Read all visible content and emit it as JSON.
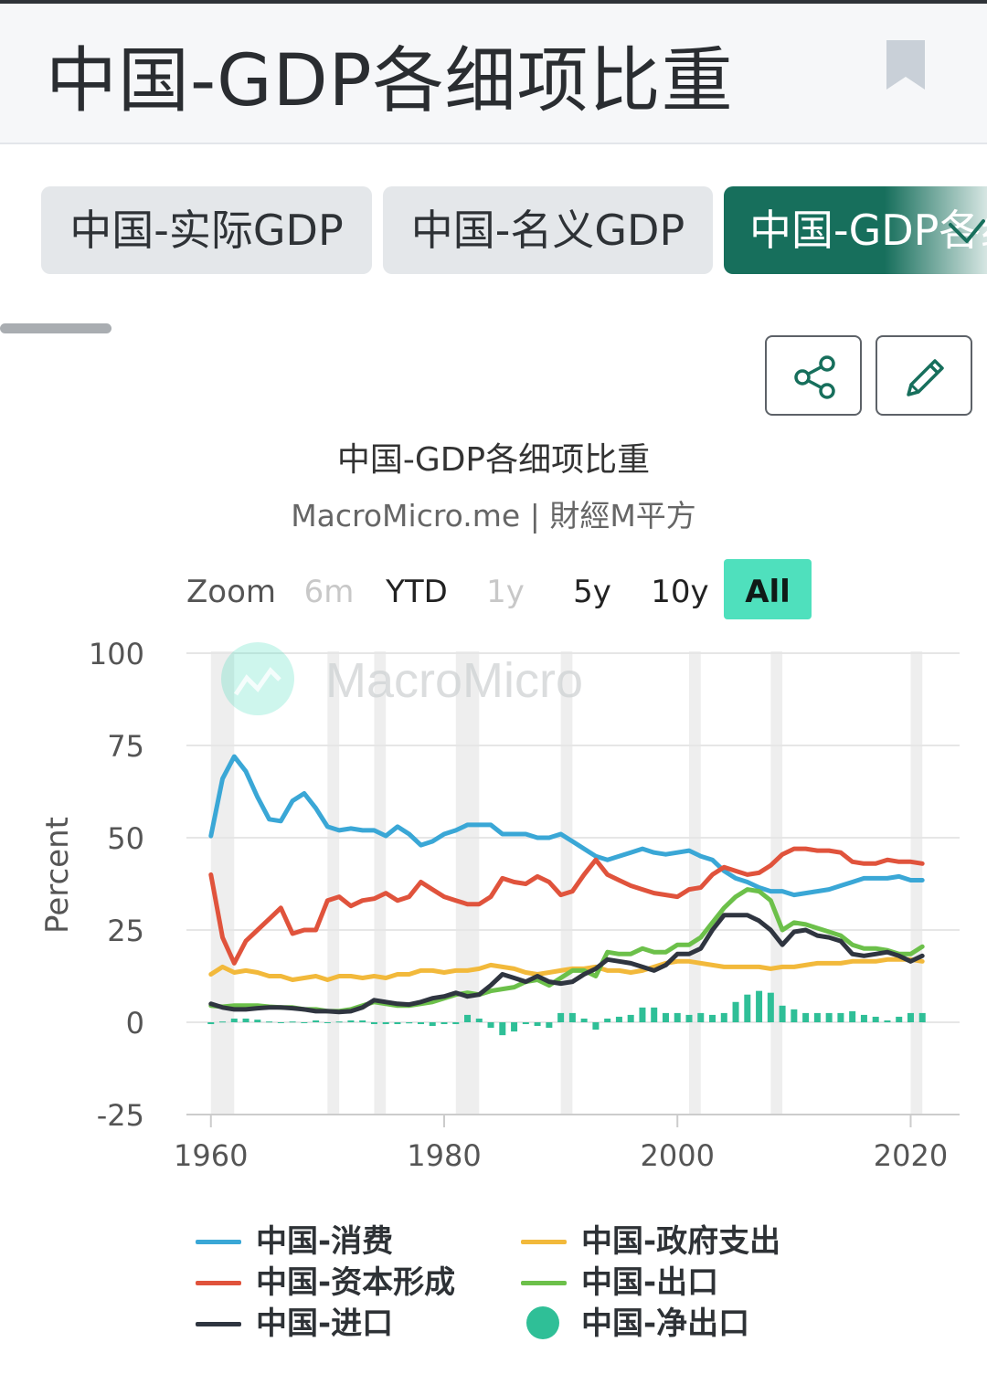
{
  "header": {
    "title": "中国-GDP各细项比重",
    "bookmark_icon": "bookmark-icon"
  },
  "tabs": [
    {
      "label": "中国-实际GDP"
    },
    {
      "label": "中国-名义GDP"
    },
    {
      "label": "中国-GDP各细项比重",
      "active": true
    }
  ],
  "toolbar": {
    "share_icon": "share-icon",
    "edit_icon": "pencil-icon"
  },
  "watermark": "MacroMicro",
  "zoom": {
    "label": "Zoom",
    "options": [
      {
        "label": "6m",
        "state": "disabled"
      },
      {
        "label": "YTD",
        "state": "enabled"
      },
      {
        "label": "1y",
        "state": "disabled"
      },
      {
        "label": "5y",
        "state": "enabled"
      },
      {
        "label": "10y",
        "state": "enabled"
      },
      {
        "label": "All",
        "state": "selected"
      }
    ]
  },
  "colors": {
    "consumption": "#3aa7d6",
    "capital": "#e0533c",
    "imports": "#2f3540",
    "government": "#f2b93b",
    "exports": "#6cc04a",
    "net_exports": "#2fbf97",
    "active_tab": "#176f5c"
  },
  "chart_data": {
    "type": "line",
    "title": "中国-GDP各细项比重",
    "subtitle": "MacroMicro.me | 財經M平方",
    "ylabel": "Percent",
    "xlabel": "",
    "ylim": [
      -25,
      100
    ],
    "xlim": [
      1959,
      2022
    ],
    "yticks": [
      "100",
      "75",
      "50",
      "25",
      "0",
      "-25"
    ],
    "xticks": [
      "1960",
      "1980",
      "2000",
      "2020"
    ],
    "recessions": [
      [
        1960,
        1962
      ],
      [
        1970,
        1971
      ],
      [
        1974,
        1975
      ],
      [
        1981,
        1983
      ],
      [
        1990,
        1991
      ],
      [
        2001,
        2002
      ],
      [
        2008,
        2009
      ],
      [
        2020,
        2021
      ]
    ],
    "x": [
      1960,
      1961,
      1962,
      1963,
      1964,
      1965,
      1966,
      1967,
      1968,
      1969,
      1970,
      1971,
      1972,
      1973,
      1974,
      1975,
      1976,
      1977,
      1978,
      1979,
      1980,
      1981,
      1982,
      1983,
      1984,
      1985,
      1986,
      1987,
      1988,
      1989,
      1990,
      1991,
      1992,
      1993,
      1994,
      1995,
      1996,
      1997,
      1998,
      1999,
      2000,
      2001,
      2002,
      2003,
      2004,
      2005,
      2006,
      2007,
      2008,
      2009,
      2010,
      2011,
      2012,
      2013,
      2014,
      2015,
      2016,
      2017,
      2018,
      2019,
      2020,
      2021
    ],
    "series": [
      {
        "name": "中国-消费",
        "kind": "line",
        "color": "#3aa7d6",
        "values": [
          50.5,
          66,
          72,
          68,
          61,
          55,
          54.5,
          60,
          62,
          58,
          53,
          52,
          52.5,
          52,
          52,
          50.5,
          53,
          51,
          48,
          49,
          51,
          52,
          53.5,
          53.5,
          53.5,
          51,
          51,
          51,
          50,
          50,
          51,
          49,
          47,
          45,
          44,
          45,
          46,
          47,
          46,
          45.5,
          46,
          46.5,
          45,
          44,
          41,
          39,
          38,
          36.5,
          35.5,
          35.5,
          34.5,
          35,
          35.5,
          36,
          37,
          38,
          39,
          39,
          39,
          39.5,
          38.5,
          38.5
        ]
      },
      {
        "name": "中国-资本形成",
        "kind": "line",
        "color": "#e0533c",
        "values": [
          40,
          23,
          16,
          22,
          25,
          28,
          31,
          24,
          25,
          25,
          33,
          34,
          31.5,
          33,
          33.5,
          35,
          33,
          34,
          38,
          36,
          34,
          33,
          32,
          32,
          34,
          39,
          38,
          37.5,
          39.5,
          38,
          34.5,
          35.5,
          40,
          44,
          40,
          38.5,
          37,
          36,
          35,
          34.5,
          34,
          36,
          36.5,
          40,
          42,
          41,
          40,
          40.5,
          42.5,
          45.5,
          47,
          47,
          46.5,
          46.5,
          46,
          43.5,
          43,
          43,
          44,
          43.5,
          43.5,
          43
        ]
      },
      {
        "name": "中国-政府支出",
        "kind": "line",
        "color": "#f2b93b",
        "values": [
          13,
          15,
          13.5,
          14,
          13.5,
          12.5,
          12.5,
          11.5,
          12,
          12.5,
          11.5,
          12.5,
          12.5,
          12,
          12.5,
          12,
          13,
          13,
          14,
          14,
          13.5,
          14,
          14,
          14.5,
          15.5,
          15,
          14.5,
          13.5,
          13,
          13.5,
          14,
          14.5,
          14.5,
          15,
          14,
          14,
          13.5,
          14,
          15,
          16,
          16.5,
          16.5,
          16,
          15.5,
          15,
          15,
          15,
          15,
          14.5,
          15,
          15,
          15.5,
          16,
          16,
          16,
          16.5,
          16.5,
          16.5,
          17,
          17,
          17,
          16.5
        ]
      },
      {
        "name": "中国-出口",
        "kind": "line",
        "color": "#6cc04a",
        "values": [
          4.5,
          4.2,
          4.5,
          4.5,
          4.5,
          4.2,
          4,
          4,
          3.5,
          3.5,
          3,
          3,
          3.5,
          4.5,
          5.5,
          5,
          4.5,
          4.5,
          5,
          5.5,
          6.5,
          7.5,
          8,
          7.5,
          8.5,
          9,
          9.5,
          11,
          11.5,
          10,
          12,
          14,
          14,
          12.5,
          19,
          18.5,
          18.5,
          20,
          19,
          19,
          21,
          21,
          23,
          27,
          31,
          34,
          36,
          35.5,
          33,
          25,
          27,
          26.5,
          25.5,
          24.5,
          23.5,
          21,
          20,
          20,
          19.5,
          18.5,
          18.5,
          20.5
        ]
      },
      {
        "name": "中国-进口",
        "kind": "line",
        "color": "#2f3540",
        "values": [
          5,
          4,
          3.5,
          3.5,
          3.8,
          4,
          4,
          3.8,
          3.5,
          3,
          3,
          2.8,
          3,
          4,
          6,
          5.5,
          5,
          4.8,
          5.5,
          6.5,
          7,
          8,
          7,
          7.5,
          10,
          13,
          12,
          11,
          12.5,
          11,
          10.5,
          11,
          13,
          14.5,
          17,
          16.5,
          16,
          15,
          14,
          15.5,
          18.5,
          18.5,
          20,
          25,
          29,
          29,
          29,
          27.5,
          25,
          21,
          24.5,
          25,
          23.5,
          23,
          22,
          18.5,
          18,
          18.5,
          19,
          18,
          16.5,
          18
        ]
      },
      {
        "name": "中国-净出口",
        "kind": "column",
        "color": "#2fbf97",
        "values": [
          -0.5,
          0.2,
          1,
          1,
          0.7,
          0.2,
          0,
          0.2,
          0,
          0.5,
          0,
          0.2,
          0.5,
          0.5,
          -0.5,
          -0.5,
          -0.5,
          -0.3,
          -0.5,
          -1,
          -0.5,
          -0.5,
          2,
          1,
          -1.5,
          -3.5,
          -2.5,
          -0.5,
          -1,
          -1.5,
          2.5,
          2.5,
          1,
          -2,
          1,
          1.5,
          2,
          4,
          4,
          2.5,
          2.5,
          2,
          2.5,
          2,
          2.5,
          5.5,
          7.5,
          8.5,
          8,
          4.5,
          3.5,
          2.5,
          2.5,
          2.5,
          2.5,
          3,
          2,
          1.5,
          0.5,
          1.5,
          2.5,
          2.5
        ]
      }
    ],
    "legend": [
      {
        "name": "中国-消费",
        "color": "#3aa7d6",
        "marker": "line"
      },
      {
        "name": "中国-政府支出",
        "color": "#f2b93b",
        "marker": "line"
      },
      {
        "name": "中国-资本形成",
        "color": "#e0533c",
        "marker": "line"
      },
      {
        "name": "中国-出口",
        "color": "#6cc04a",
        "marker": "line"
      },
      {
        "name": "中国-进口",
        "color": "#2f3540",
        "marker": "line"
      },
      {
        "name": "中国-净出口",
        "color": "#2fbf97",
        "marker": "dot"
      }
    ],
    "legend_position": "bottom"
  }
}
